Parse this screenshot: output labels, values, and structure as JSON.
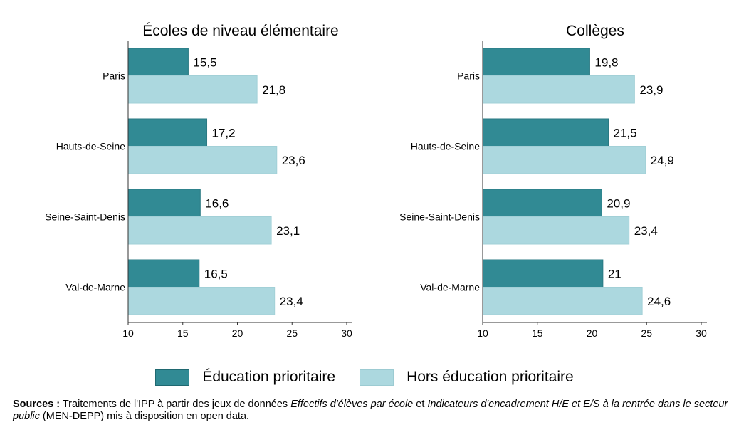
{
  "chart_data": [
    {
      "type": "bar",
      "orientation": "horizontal",
      "title": "Écoles de niveau élémentaire",
      "categories": [
        "Paris",
        "Hauts-de-Seine",
        "Seine-Saint-Denis",
        "Val-de-Marne"
      ],
      "series": [
        {
          "name": "Éducation prioritaire",
          "values": [
            15.5,
            17.2,
            16.6,
            16.5
          ],
          "labels": [
            "15,5",
            "17,2",
            "16,6",
            "16,5"
          ]
        },
        {
          "name": "Hors éducation prioritaire",
          "values": [
            21.8,
            23.6,
            23.1,
            23.4
          ],
          "labels": [
            "21,8",
            "23,6",
            "23,1",
            "23,4"
          ]
        }
      ],
      "xlim": [
        10,
        30
      ],
      "xticks": [
        "10",
        "15",
        "20",
        "25",
        "30"
      ],
      "grid": false
    },
    {
      "type": "bar",
      "orientation": "horizontal",
      "title": "Collèges",
      "categories": [
        "Paris",
        "Hauts-de-Seine",
        "Seine-Saint-Denis",
        "Val-de-Marne"
      ],
      "series": [
        {
          "name": "Éducation prioritaire",
          "values": [
            19.8,
            21.5,
            20.9,
            21
          ],
          "labels": [
            "19,8",
            "21,5",
            "20,9",
            "21"
          ]
        },
        {
          "name": "Hors éducation prioritaire",
          "values": [
            23.9,
            24.9,
            23.4,
            24.6
          ],
          "labels": [
            "23,9",
            "24,9",
            "23,4",
            "24,6"
          ]
        }
      ],
      "xlim": [
        10,
        30
      ],
      "xticks": [
        "10",
        "15",
        "20",
        "25",
        "30"
      ],
      "grid": false
    }
  ],
  "legend": {
    "placement": "bottom",
    "items": [
      {
        "label": "Éducation prioritaire",
        "color": "#318a94"
      },
      {
        "label": "Hors éducation prioritaire",
        "color": "#acd8df"
      }
    ]
  },
  "sources": {
    "label": "Sources :",
    "t1": " Traitements de l'IPP à partir des jeux de données ",
    "i1": "Effectifs d'élèves par école",
    "t2": " et ",
    "i2": "Indicateurs d'encadrement H/E et E/S à la rentrée dans le secteur public",
    "t3": " (MEN-DEPP) mis à disposition en open data."
  }
}
